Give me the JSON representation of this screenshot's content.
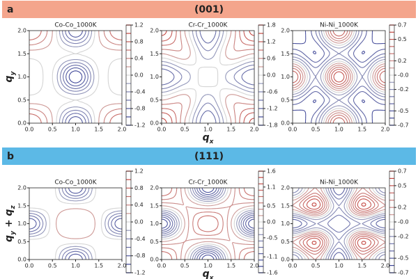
{
  "panels": [
    {
      "label": "a",
      "title": "(001)",
      "color": "#f4a58c"
    },
    {
      "label": "b",
      "title": "(111)",
      "color": "#5cb9e6"
    }
  ],
  "chart_data": [
    {
      "type": "contour",
      "title": "Co-Co_1000K",
      "ylabel": [
        "q",
        "y"
      ],
      "xlim": [
        0,
        2
      ],
      "ylim": [
        0,
        2
      ],
      "xticks": [
        {
          "value": 0,
          "label": "0.0"
        },
        0.5,
        {
          "value": 1,
          "label": "1.0"
        },
        1.5,
        {
          "value": 2,
          "label": "2.0"
        }
      ],
      "yticks": [
        {
          "value": 0,
          "label": "0.0"
        },
        0.5,
        {
          "value": 1,
          "label": "1.0"
        },
        1.5,
        {
          "value": 2,
          "label": "2.0"
        }
      ],
      "z": [
        [
          0.8,
          0.2,
          -1.0,
          0.2,
          0.8
        ],
        [
          0.1,
          0.1,
          0,
          0.1,
          0.1
        ],
        [
          -0.2,
          0,
          -1.2,
          0,
          -0.2
        ],
        [
          0.1,
          0.1,
          0,
          0.1,
          0.1
        ],
        [
          0.8,
          0.2,
          -1.0,
          0.2,
          0.8
        ]
      ],
      "levels": [
        -1.2,
        -1.0,
        -0.8,
        -0.6,
        -0.4,
        -0.2,
        0,
        0.2,
        0.4,
        0.6,
        0.8,
        1.0,
        1.2
      ],
      "clim": [
        -1.2,
        1.2
      ],
      "cticks": [
        1.2,
        0.8,
        0.4,
        {
          "value": 0,
          "label": "0.0"
        },
        -0.4,
        -0.8,
        -1.2
      ],
      "cmap": [
        "#27308f",
        "#d4d4d4",
        "#c0302a"
      ]
    },
    {
      "type": "contour",
      "title": "Cr-Cr_1000K",
      "xlabel": [
        "q",
        "x"
      ],
      "xlim": [
        0,
        2
      ],
      "ylim": [
        0,
        2
      ],
      "xticks": [
        {
          "value": 0,
          "label": "0.0"
        },
        0.5,
        {
          "value": 1,
          "label": "1.0"
        },
        1.5,
        {
          "value": 2,
          "label": "2.0"
        }
      ],
      "yticks": [
        {
          "value": 0,
          "label": "0.0"
        },
        0.5,
        {
          "value": 1,
          "label": "1.0"
        },
        1.5,
        {
          "value": 2,
          "label": "2.0"
        }
      ],
      "z": [
        [
          1.6,
          0.3,
          -1.2,
          0.3,
          1.6
        ],
        [
          0.3,
          0.5,
          -0.5,
          0.5,
          0.3
        ],
        [
          -1.2,
          -0.5,
          0.2,
          -0.5,
          -1.2
        ],
        [
          0.3,
          0.5,
          -0.5,
          0.5,
          0.3
        ],
        [
          1.6,
          0.3,
          -1.2,
          0.3,
          1.6
        ]
      ],
      "levels": [
        -1.8,
        -1.5,
        -1.2,
        -0.9,
        -0.6,
        -0.3,
        0,
        0.3,
        0.6,
        0.9,
        1.2,
        1.5,
        1.8
      ],
      "clim": [
        -1.8,
        1.8
      ],
      "cticks": [
        1.8,
        1.2,
        0.6,
        {
          "value": 0,
          "label": "0.0"
        },
        -0.6,
        -1.2,
        -1.8
      ],
      "cmap": [
        "#27308f",
        "#d4d4d4",
        "#c0302a"
      ]
    },
    {
      "type": "contour",
      "title": "Ni-Ni_1000K",
      "xlim": [
        0,
        2
      ],
      "ylim": [
        0,
        2
      ],
      "xticks": [
        {
          "value": 0,
          "label": "0.0"
        },
        0.5,
        {
          "value": 1,
          "label": "1.0"
        },
        1.5,
        {
          "value": 2,
          "label": "2.0"
        }
      ],
      "yticks": [
        {
          "value": 0,
          "label": "0.0"
        },
        0.5,
        {
          "value": 1,
          "label": "1.0"
        },
        1.5,
        {
          "value": 2,
          "label": "2.0"
        }
      ],
      "z": [
        [
          -0.6,
          -0.3,
          0.5,
          -0.3,
          -0.6
        ],
        [
          -0.3,
          -0.5,
          -0.2,
          -0.5,
          -0.3
        ],
        [
          0.5,
          -0.2,
          0.6,
          -0.2,
          0.5
        ],
        [
          -0.3,
          -0.5,
          -0.2,
          -0.5,
          -0.3
        ],
        [
          -0.6,
          -0.3,
          0.5,
          -0.3,
          -0.6
        ]
      ],
      "levels": [
        -0.7,
        -0.6,
        -0.5,
        -0.4,
        -0.3,
        -0.2,
        -0.1,
        0,
        0.1,
        0.2,
        0.3,
        0.4,
        0.5,
        0.6,
        0.7
      ],
      "clim": [
        -0.7,
        0.7
      ],
      "cticks": [
        0.7,
        0.5,
        0.2,
        {
          "value": 0,
          "label": "-0.0"
        },
        -0.2,
        -0.5,
        -0.7
      ],
      "cmap": [
        "#27308f",
        "#d4d4d4",
        "#c0302a"
      ]
    },
    {
      "type": "contour",
      "title": "Co-Co_1000K",
      "ylabel": [
        "q",
        "y",
        " + q",
        "z"
      ],
      "xlim": [
        0,
        2
      ],
      "ylim": [
        0,
        2
      ],
      "xticks": [
        {
          "value": 0,
          "label": "0.0"
        },
        0.5,
        {
          "value": 1,
          "label": "1.0"
        },
        1.5,
        {
          "value": 2,
          "label": "2.0"
        }
      ],
      "yticks": [
        {
          "value": 0,
          "label": "0.0"
        },
        0.5,
        {
          "value": 1,
          "label": "1.0"
        },
        1.5,
        {
          "value": 2,
          "label": "2.0"
        }
      ],
      "z": [
        [
          0.1,
          0.1,
          -1.0,
          0.1,
          0.1
        ],
        [
          0.1,
          0.1,
          0.1,
          0.1,
          0.1
        ],
        [
          -1.0,
          0.1,
          0.4,
          0.1,
          -1.0
        ],
        [
          0.1,
          0.1,
          0.1,
          0.1,
          0.1
        ],
        [
          0.1,
          0.1,
          -1.0,
          0.1,
          0.1
        ]
      ],
      "levels": [
        -1.2,
        -1.0,
        -0.8,
        -0.6,
        -0.4,
        -0.2,
        0,
        0.2,
        0.4,
        0.6,
        0.8,
        1.0,
        1.2
      ],
      "clim": [
        -1.2,
        1.2
      ],
      "cticks": [
        1.2,
        0.8,
        0.4,
        {
          "value": 0,
          "label": "0.0"
        },
        -0.4,
        -0.8,
        -1.2
      ],
      "cmap": [
        "#27308f",
        "#d4d4d4",
        "#c0302a"
      ]
    },
    {
      "type": "contour",
      "title": "Cr-Cr_1000K",
      "xlabel": [
        "q",
        "x"
      ],
      "xlim": [
        0,
        2
      ],
      "ylim": [
        0,
        2
      ],
      "xticks": [
        {
          "value": 0,
          "label": "0.0"
        },
        0.5,
        {
          "value": 1,
          "label": "1.0"
        },
        1.5,
        {
          "value": 2,
          "label": "2.0"
        }
      ],
      "yticks": [
        {
          "value": 0,
          "label": "0.0"
        },
        0.5,
        {
          "value": 1,
          "label": "1.0"
        },
        1.5,
        {
          "value": 2,
          "label": "2.0"
        }
      ],
      "z": [
        [
          1.0,
          0.2,
          -1.4,
          0.2,
          1.0
        ],
        [
          0.2,
          0.4,
          0.2,
          0.4,
          0.2
        ],
        [
          -1.4,
          0.2,
          1.0,
          0.2,
          -1.4
        ],
        [
          0.2,
          0.4,
          0.2,
          0.4,
          0.2
        ],
        [
          1.0,
          0.2,
          -1.4,
          0.2,
          1.0
        ]
      ],
      "levels": [
        -1.6,
        -1.4,
        -1.2,
        -1.0,
        -0.8,
        -0.6,
        -0.4,
        -0.2,
        0,
        0.2,
        0.4,
        0.6,
        0.8,
        1.0,
        1.2,
        1.4,
        1.6
      ],
      "clim": [
        -1.6,
        1.6
      ],
      "cticks": [
        1.6,
        1.1,
        0.5,
        {
          "value": 0,
          "label": "0.0"
        },
        -0.5,
        -1.1,
        -1.6
      ],
      "cmap": [
        "#27308f",
        "#d4d4d4",
        "#c0302a"
      ]
    },
    {
      "type": "contour",
      "title": "Ni-Ni_1000K",
      "xlim": [
        0,
        2
      ],
      "ylim": [
        0,
        2
      ],
      "xticks": [
        {
          "value": 0,
          "label": "0.0"
        },
        0.5,
        {
          "value": 1,
          "label": "1.0"
        },
        1.5,
        {
          "value": 2,
          "label": "2.0"
        }
      ],
      "yticks": [
        {
          "value": 0,
          "label": "0.0"
        },
        0.5,
        {
          "value": 1,
          "label": "1.0"
        },
        1.5,
        {
          "value": 2,
          "label": "2.0"
        }
      ],
      "z": [
        [
          -0.3,
          0.2,
          -0.5,
          0.2,
          -0.3
        ],
        [
          0.2,
          0.6,
          -0.2,
          0.6,
          0.2
        ],
        [
          -0.5,
          -0.2,
          -0.4,
          -0.2,
          -0.5
        ],
        [
          0.2,
          0.6,
          -0.2,
          0.6,
          0.2
        ],
        [
          -0.3,
          0.2,
          -0.5,
          0.2,
          -0.3
        ]
      ],
      "levels": [
        -0.7,
        -0.6,
        -0.5,
        -0.4,
        -0.3,
        -0.2,
        -0.1,
        0,
        0.1,
        0.2,
        0.3,
        0.4,
        0.5,
        0.6,
        0.7
      ],
      "clim": [
        -0.7,
        0.7
      ],
      "cticks": [
        0.7,
        0.5,
        0.2,
        {
          "value": 0,
          "label": "-0.0"
        },
        -0.2,
        -0.5,
        -0.7
      ],
      "cmap": [
        "#27308f",
        "#d4d4d4",
        "#c0302a"
      ]
    }
  ]
}
